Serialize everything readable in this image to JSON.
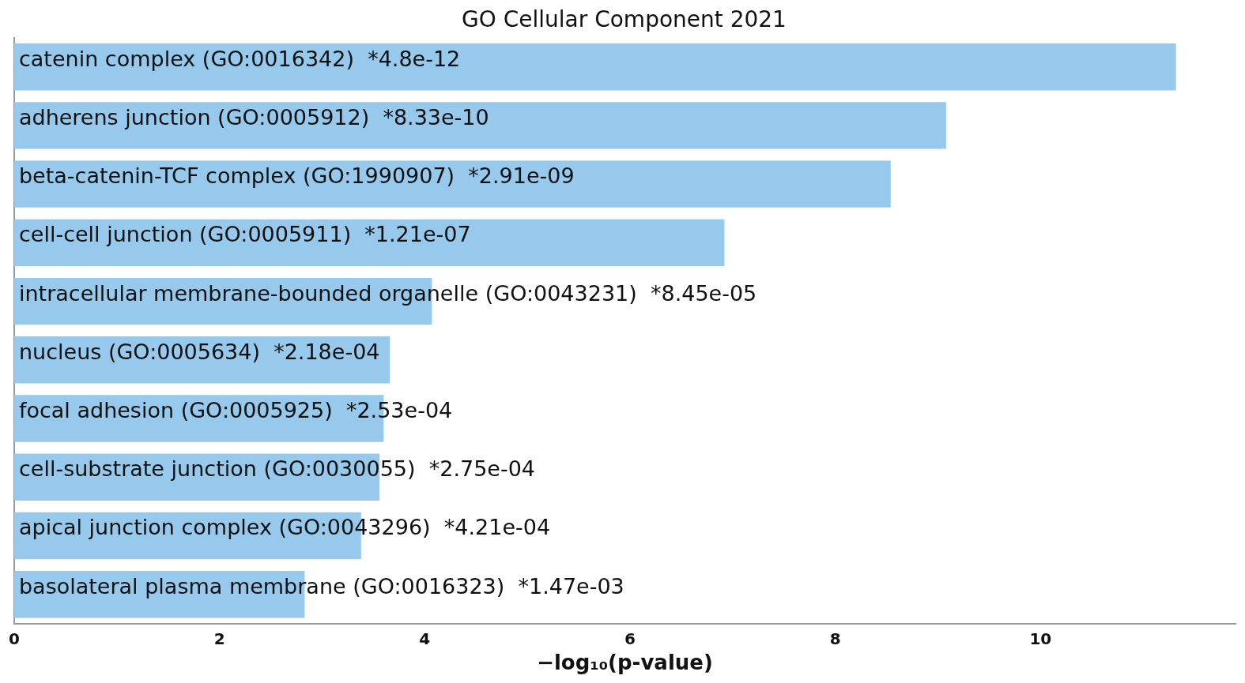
{
  "chart_data": {
    "type": "bar",
    "orientation": "horizontal",
    "title": "GO Cellular Component 2021",
    "xlabel": "−log₁₀(p-value)",
    "categories": [
      "catenin complex (GO:0016342)",
      "adherens junction (GO:0005912)",
      "beta-catenin-TCF complex (GO:1990907)",
      "cell-cell junction (GO:0005911)",
      "intracellular membrane-bounded organelle (GO:0043231)",
      "nucleus (GO:0005634)",
      "focal adhesion (GO:0005925)",
      "cell-substrate junction (GO:0030055)",
      "apical junction complex (GO:0043296)",
      "basolateral plasma membrane (GO:0016323)"
    ],
    "values": [
      11.32,
      9.08,
      8.54,
      6.92,
      4.07,
      3.66,
      3.6,
      3.56,
      3.38,
      2.83
    ],
    "value_labels": [
      "*4.8e-12",
      "*8.33e-10",
      "*2.91e-09",
      "*1.21e-07",
      "*8.45e-05",
      "*2.18e-04",
      "*2.53e-04",
      "*2.75e-04",
      "*4.21e-04",
      "*1.47e-03"
    ],
    "color": "#96c9eb",
    "xlim": [
      0,
      11.9
    ],
    "xticks": [
      0,
      2,
      4,
      6,
      8,
      10
    ],
    "tick_labels": "x",
    "grid": false,
    "legend": false
  }
}
